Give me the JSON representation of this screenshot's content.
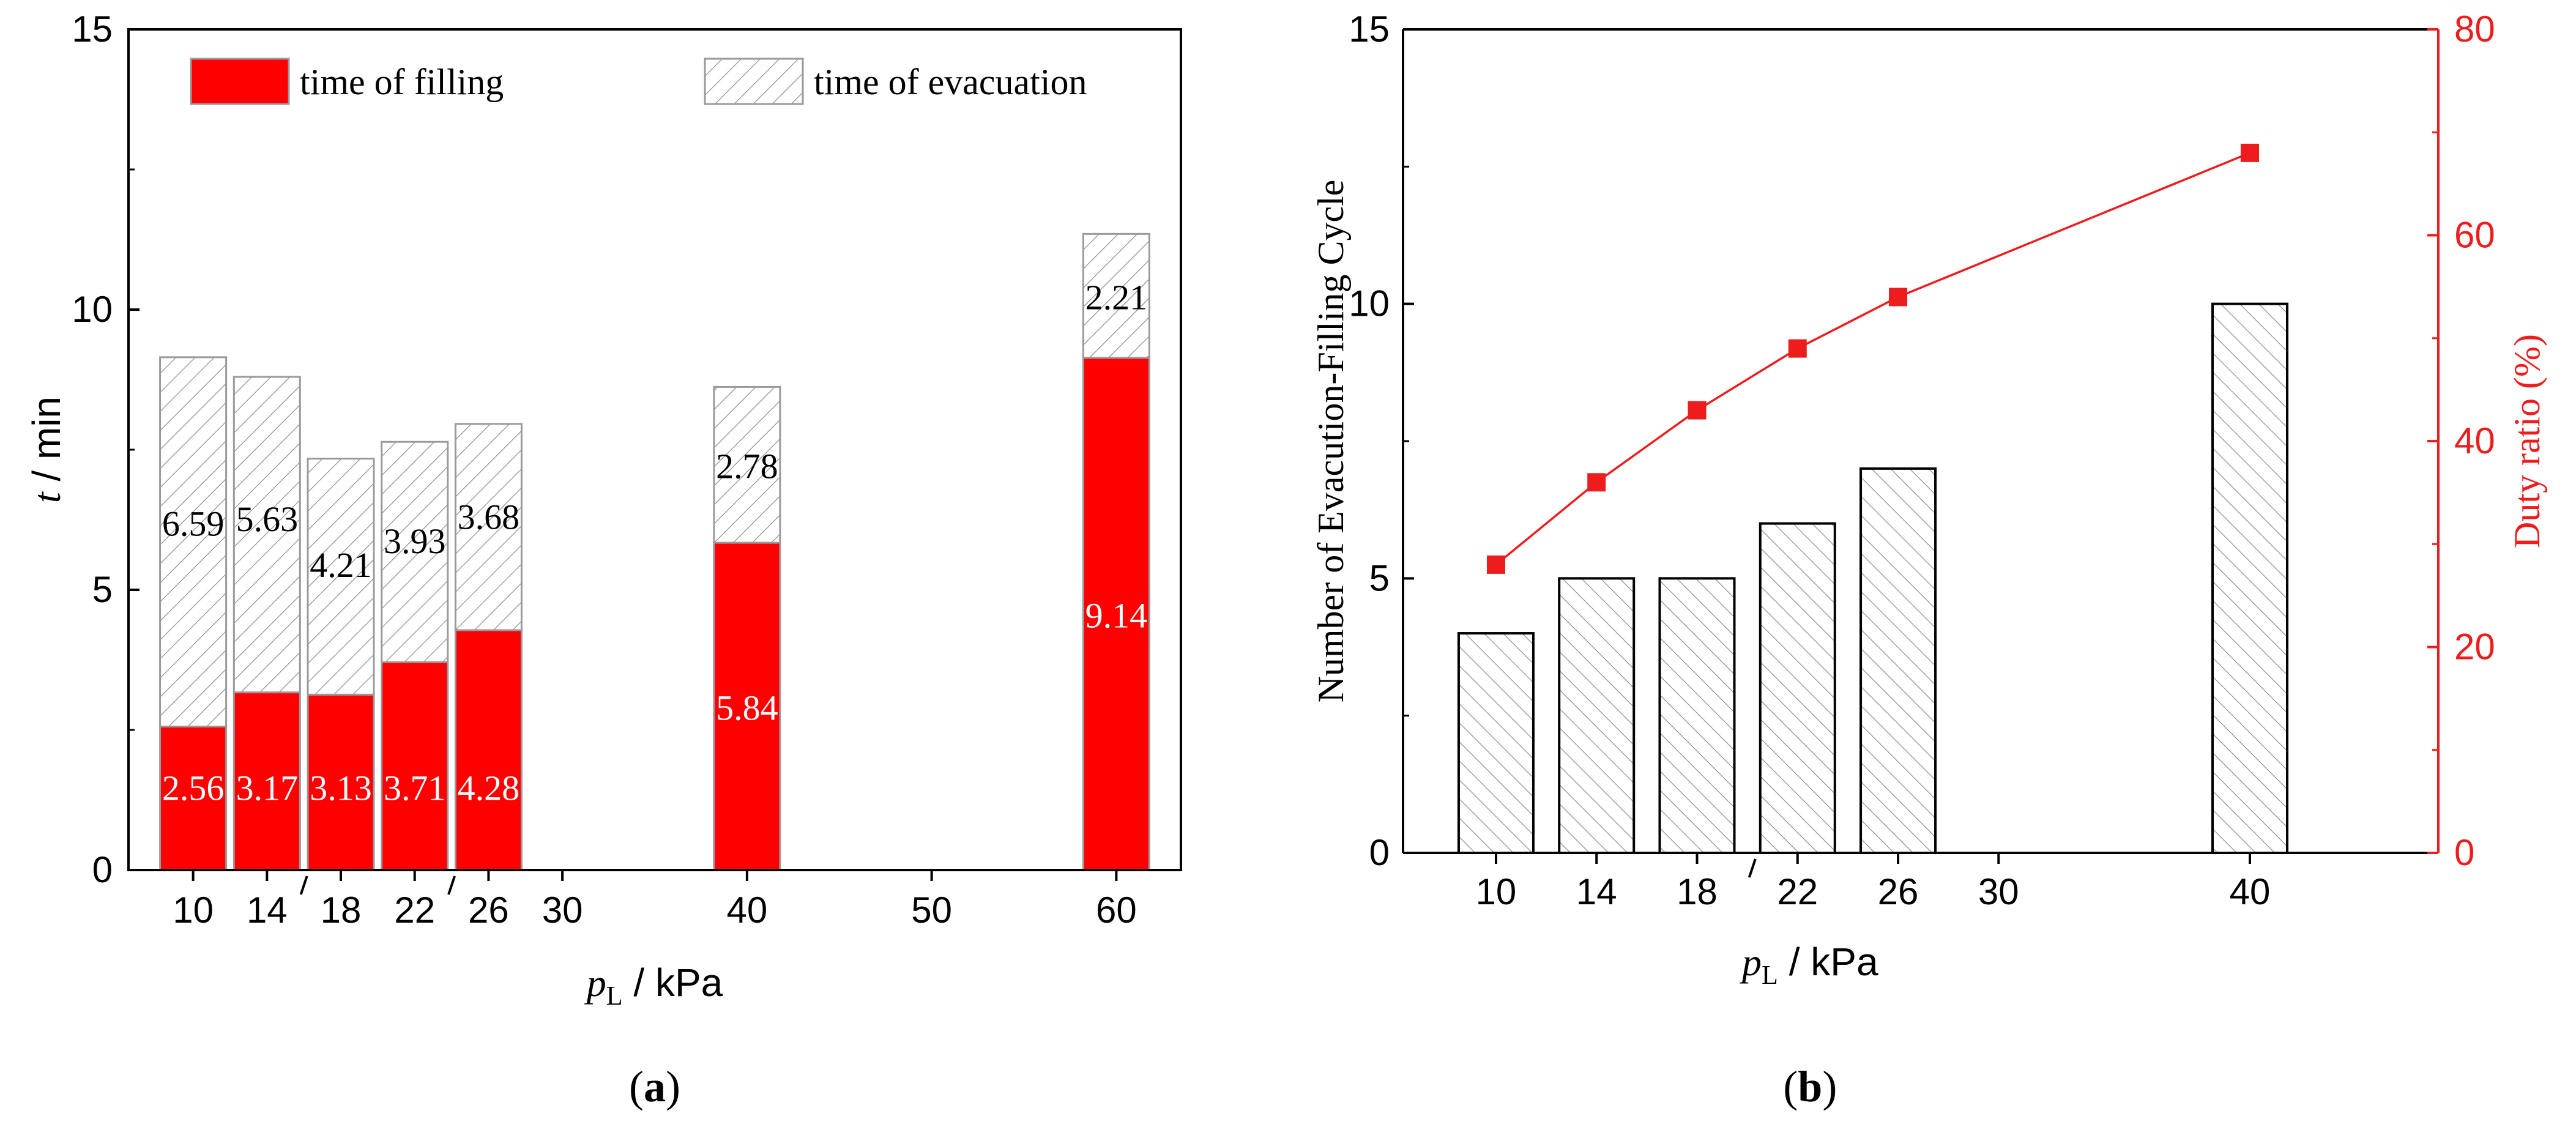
{
  "chart_data": [
    {
      "type": "bar",
      "stacked": true,
      "panel_label": "(a)",
      "panel_letter": "a",
      "x_categories": [
        10,
        14,
        18,
        22,
        26,
        30,
        40,
        50,
        60
      ],
      "bar_positions": [
        10,
        14,
        18,
        22,
        26,
        40,
        60
      ],
      "series": [
        {
          "name": "time of filling",
          "values": [
            2.56,
            3.17,
            3.13,
            3.71,
            4.28,
            5.84,
            9.14
          ],
          "color": "#ff0000"
        },
        {
          "name": "time of evacuation",
          "values": [
            6.59,
            5.63,
            4.21,
            3.93,
            3.68,
            2.78,
            2.21
          ],
          "color": "#ffffff",
          "hatch": "diagonal"
        }
      ],
      "xlabel_main": "p",
      "xlabel_sub": "L",
      "xlabel_unit": " / kPa",
      "ylabel_italic": "t",
      "ylabel_unit": " / min",
      "ylim": [
        0,
        15
      ],
      "yticks": [
        0,
        5,
        10,
        15
      ],
      "legend": "top"
    },
    {
      "type": "bar+line",
      "panel_label": "(b)",
      "panel_letter": "b",
      "x_categories": [
        10,
        14,
        18,
        22,
        26,
        30,
        40
      ],
      "bar_positions": [
        10,
        14,
        18,
        22,
        26,
        40
      ],
      "bar_series": {
        "name": "Number of Evacution-Filling Cycle",
        "values": [
          4,
          5,
          5,
          6,
          7,
          10
        ]
      },
      "line_series": {
        "name": "Duty ratio (%)",
        "values": [
          28,
          36,
          43,
          49,
          54,
          68
        ],
        "color": "#ee1c1c"
      },
      "xlabel_main": "p",
      "xlabel_sub": "L",
      "xlabel_unit": " / kPa",
      "ylabel_left": "Number of Evacution-Filling Cycle",
      "ylabel_right": "Duty ratio (%)",
      "ylim_left": [
        0,
        15
      ],
      "yticks_left": [
        0,
        5,
        10,
        15
      ],
      "ylim_right": [
        0,
        80
      ],
      "yticks_right": [
        0,
        20,
        40,
        60,
        80
      ]
    }
  ]
}
